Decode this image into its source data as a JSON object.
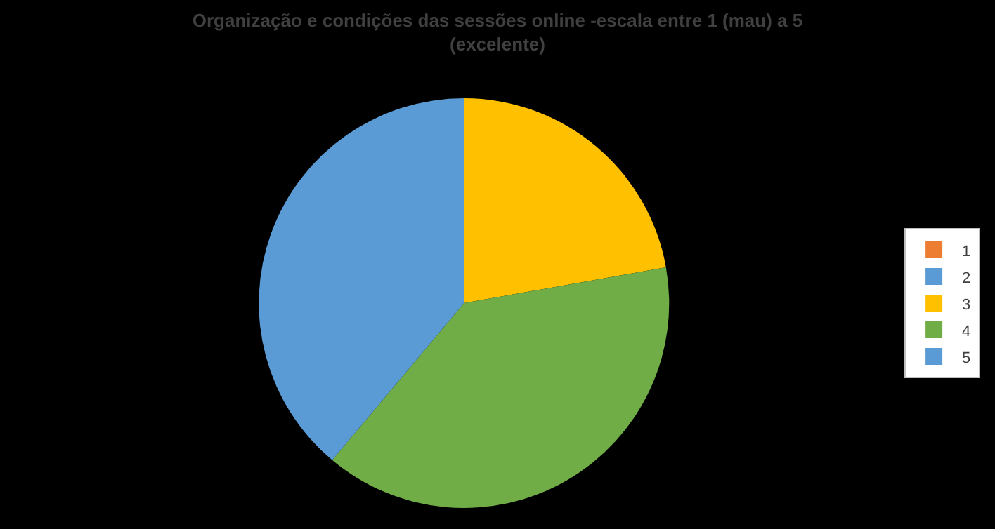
{
  "chart_data": {
    "type": "pie",
    "title": "Organização e condições das sessões online -escala entre 1 (mau) a 5 (excelente)",
    "categories": [
      "1",
      "2",
      "3",
      "4",
      "5"
    ],
    "values": [
      0,
      0,
      22.2,
      38.9,
      38.9
    ],
    "colors": [
      "#ed7d31",
      "#5b9bd5",
      "#ffc000",
      "#70ad47",
      "#5b9bd5"
    ],
    "legend": "right"
  }
}
